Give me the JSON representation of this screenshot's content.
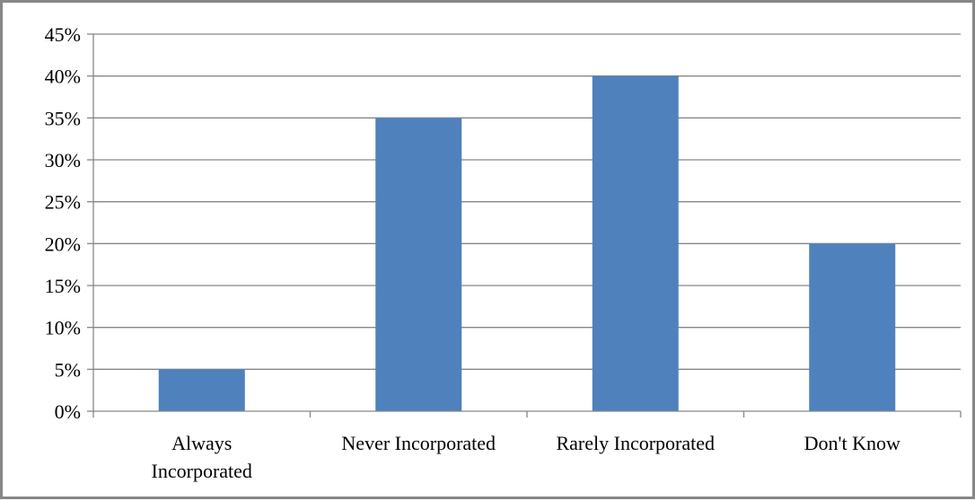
{
  "chart_data": {
    "type": "bar",
    "categories": [
      [
        "Always",
        "Incorporated"
      ],
      [
        "Never Incorporated"
      ],
      [
        "Rarely Incorporated"
      ],
      [
        "Don't Know"
      ]
    ],
    "values": [
      5,
      35,
      40,
      20
    ],
    "ylim": [
      0,
      45
    ],
    "ytick_step": 5,
    "ytick_labels": [
      "0%",
      "5%",
      "10%",
      "15%",
      "20%",
      "25%",
      "30%",
      "35%",
      "40%",
      "45%"
    ],
    "grid": true,
    "legend": "none",
    "bar_color": "#4f81bd",
    "grid_color": "#878787"
  }
}
